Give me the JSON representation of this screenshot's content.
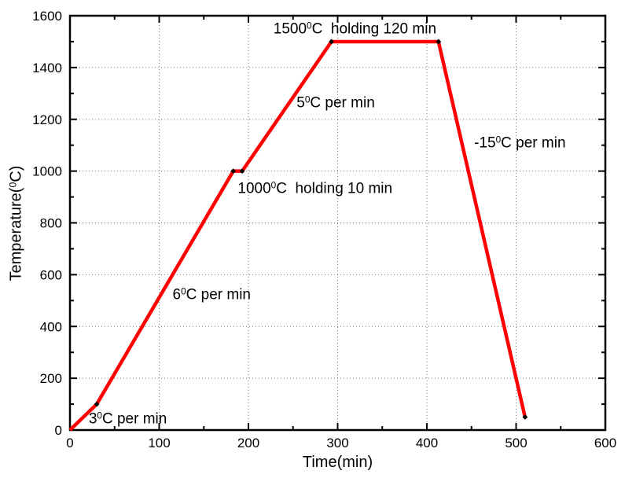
{
  "chart_data": {
    "type": "line",
    "title": "",
    "xlabel_segments": [
      {
        "t": "Time(min)"
      }
    ],
    "ylabel_segments": [
      {
        "t": "Temperature("
      },
      {
        "t": "0",
        "sup": true
      },
      {
        "t": "C)"
      }
    ],
    "xlim": [
      0,
      600
    ],
    "ylim": [
      0,
      1600
    ],
    "x_major_ticks": [
      0,
      100,
      200,
      300,
      400,
      500,
      600
    ],
    "x_minor_step": 50,
    "y_major_ticks": [
      0,
      200,
      400,
      600,
      800,
      1000,
      1200,
      1400,
      1600
    ],
    "y_minor_step": 100,
    "grid": "dotted-at-major-ticks",
    "legend": "none",
    "colors": {
      "line": "#ff0000",
      "marker": "#000000",
      "axis": "#000000",
      "grid": "#7a7a7a",
      "background": "#ffffff"
    },
    "series": [
      {
        "name": "temperature-profile",
        "points": [
          [
            0,
            0
          ],
          [
            30,
            100
          ],
          [
            183,
            1000
          ],
          [
            193,
            1000
          ],
          [
            293,
            1500
          ],
          [
            413,
            1500
          ],
          [
            510,
            50
          ]
        ],
        "marker_points": [
          [
            30,
            100
          ],
          [
            183,
            1000
          ],
          [
            193,
            1000
          ],
          [
            293,
            1500
          ],
          [
            413,
            1500
          ],
          [
            510,
            50
          ]
        ],
        "marker_shape": "diamond"
      }
    ],
    "annotations": [
      {
        "name": "ramp-3c-label",
        "segments": [
          {
            "t": "3"
          },
          {
            "t": "0",
            "sup": true
          },
          {
            "t": "C per min"
          }
        ],
        "x": 21,
        "y": 40
      },
      {
        "name": "ramp-6c-label",
        "segments": [
          {
            "t": "6"
          },
          {
            "t": "0",
            "sup": true
          },
          {
            "t": "C per min"
          }
        ],
        "x": 115,
        "y": 520
      },
      {
        "name": "hold-1000c-label",
        "segments": [
          {
            "t": "1000"
          },
          {
            "t": "0",
            "sup": true
          },
          {
            "t": "C  holding 10 min"
          }
        ],
        "x": 188,
        "y": 930
      },
      {
        "name": "ramp-5c-label",
        "segments": [
          {
            "t": "5"
          },
          {
            "t": "0",
            "sup": true
          },
          {
            "t": "C per min"
          }
        ],
        "x": 254,
        "y": 1260
      },
      {
        "name": "hold-1500c-label",
        "segments": [
          {
            "t": "1500"
          },
          {
            "t": "0",
            "sup": true
          },
          {
            "t": "C  holding 120 min"
          }
        ],
        "x": 228,
        "y": 1545
      },
      {
        "name": "ramp-15c-label",
        "segments": [
          {
            "t": "-15"
          },
          {
            "t": "0",
            "sup": true
          },
          {
            "t": "C per min"
          }
        ],
        "x": 453,
        "y": 1105
      }
    ]
  }
}
